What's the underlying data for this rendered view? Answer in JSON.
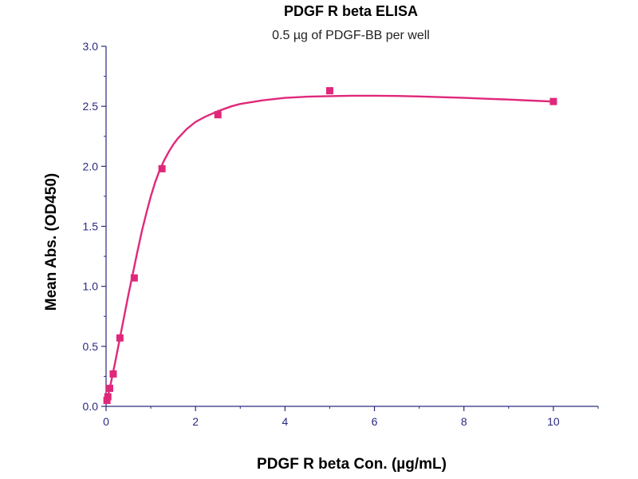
{
  "chart_data": {
    "type": "scatter",
    "title": "PDGF R beta ELISA",
    "subtitle": "0.5 µg of PDGF-BB per well",
    "xlabel": "PDGF R beta Con. (µg/mL)",
    "ylabel": "Mean Abs. (OD450)",
    "xlim": [
      0,
      11
    ],
    "ylim": [
      0,
      3.0
    ],
    "x_ticks": [
      0,
      2,
      4,
      6,
      8,
      10
    ],
    "y_ticks": [
      0.0,
      0.5,
      1.0,
      1.5,
      2.0,
      2.5,
      3.0
    ],
    "x_tick_labels": [
      "0",
      "2",
      "4",
      "6",
      "8",
      "10"
    ],
    "y_tick_labels": [
      "0.0",
      "0.5",
      "1.0",
      "1.5",
      "2.0",
      "2.5",
      "3.0"
    ],
    "grid": false,
    "colors": {
      "series": "#e0287a",
      "axis": "#2a2a80"
    },
    "series": [
      {
        "x": [
          0.02,
          0.04,
          0.08,
          0.16,
          0.31,
          0.63,
          1.25,
          2.5,
          5.0,
          10.0
        ],
        "y": [
          0.05,
          0.08,
          0.15,
          0.27,
          0.57,
          1.07,
          1.98,
          2.43,
          2.63,
          2.54
        ]
      }
    ],
    "fit_curve": {
      "x": [
        0,
        0.1,
        0.2,
        0.3,
        0.4,
        0.5,
        0.6,
        0.7,
        0.8,
        0.9,
        1.0,
        1.1,
        1.2,
        1.3,
        1.4,
        1.5,
        1.6,
        1.8,
        2.0,
        2.2,
        2.5,
        2.8,
        3.0,
        3.5,
        4.0,
        4.5,
        5.0,
        5.5,
        6.0,
        6.5,
        7.0,
        7.5,
        8.0,
        8.5,
        9.0,
        9.5,
        10.0
      ],
      "y": [
        0.02,
        0.18,
        0.36,
        0.55,
        0.74,
        0.93,
        1.11,
        1.29,
        1.46,
        1.61,
        1.75,
        1.87,
        1.97,
        2.05,
        2.12,
        2.18,
        2.23,
        2.31,
        2.37,
        2.41,
        2.46,
        2.5,
        2.52,
        2.55,
        2.57,
        2.58,
        2.585,
        2.588,
        2.588,
        2.586,
        2.582,
        2.576,
        2.57,
        2.563,
        2.556,
        2.548,
        2.54
      ]
    }
  }
}
